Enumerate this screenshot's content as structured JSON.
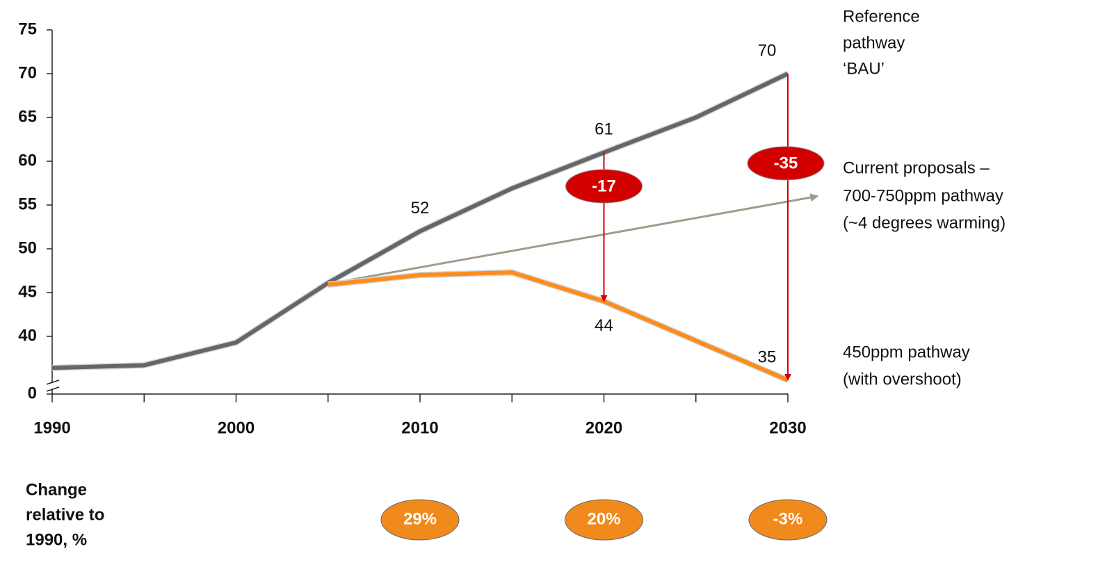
{
  "chart_data": {
    "type": "line",
    "xlim": [
      1990,
      2030
    ],
    "xticks": [
      1990,
      2000,
      2010,
      2020,
      2030
    ],
    "xminorticks": [
      1995,
      2005,
      2015,
      2025
    ],
    "ylim": [
      0,
      75
    ],
    "yticks": [
      0,
      40,
      45,
      50,
      55,
      60,
      65,
      70,
      75
    ],
    "y_axis_break": true,
    "series": [
      {
        "name": [
          "Reference",
          "pathway",
          "‘BAU’"
        ],
        "color": "#666666",
        "x": [
          1990,
          1995,
          2000,
          2005,
          2010,
          2015,
          2020,
          2025,
          2030
        ],
        "values": [
          36.4,
          36.7,
          39.3,
          46.1,
          52,
          56.9,
          61,
          65,
          70
        ],
        "value_labels": [
          null,
          null,
          null,
          null,
          "52",
          null,
          "61",
          null,
          "70"
        ]
      },
      {
        "name": [
          "Current proposals –",
          "700-750ppm pathway",
          "(~4 degrees warming)"
        ],
        "color": "#a09c8c",
        "x": [
          2005,
          2030
        ],
        "values": [
          46,
          55.4
        ],
        "arrow": true
      },
      {
        "name": [
          "450ppm pathway",
          "(with overshoot)"
        ],
        "color": "#ff8c1a",
        "x": [
          2005,
          2010,
          2015,
          2020,
          2030
        ],
        "values": [
          45.9,
          47,
          47.3,
          44,
          35
        ],
        "value_labels": [
          null,
          null,
          null,
          "44",
          "35"
        ]
      }
    ],
    "annotations": [
      {
        "x": 2020,
        "from": 61,
        "to": 44,
        "label": "-17",
        "color": "#d40000"
      },
      {
        "x": 2030,
        "from": 70,
        "to": 35,
        "label": "-35",
        "color": "#d40000"
      }
    ],
    "change": {
      "label": [
        "Change",
        "relative to",
        "1990, %"
      ],
      "x": [
        2010,
        2020,
        2030
      ],
      "values": [
        29,
        20,
        -3
      ],
      "value_labels": [
        "29%",
        "20%",
        "-3%"
      ],
      "color": "#f08a1c"
    }
  }
}
